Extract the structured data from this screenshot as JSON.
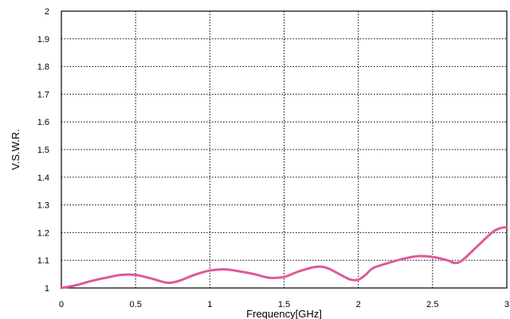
{
  "chart_data": {
    "type": "line",
    "title": "",
    "xlabel": "Frequency[GHz]",
    "ylabel": "V.S.W.R.",
    "xlim": [
      0,
      3
    ],
    "ylim": [
      1,
      2
    ],
    "x_ticks": [
      "0",
      "0.5",
      "1",
      "1.5",
      "2",
      "2.5",
      "3"
    ],
    "y_ticks": [
      "1",
      "1.1",
      "1.2",
      "1.3",
      "1.4",
      "1.5",
      "1.6",
      "1.7",
      "1.8",
      "1.9",
      "2"
    ],
    "grid": true,
    "grid_style": "dotted",
    "series": [
      {
        "color": "#e0589a",
        "x": [
          0,
          0.1,
          0.2,
          0.3,
          0.4,
          0.5,
          0.6,
          0.7,
          0.75,
          0.8,
          0.9,
          1.0,
          1.1,
          1.2,
          1.3,
          1.4,
          1.5,
          1.6,
          1.7,
          1.75,
          1.8,
          1.9,
          1.95,
          2.0,
          2.05,
          2.1,
          2.2,
          2.3,
          2.4,
          2.5,
          2.6,
          2.65,
          2.7,
          2.8,
          2.9,
          2.95,
          3.0
        ],
        "y": [
          1.0,
          1.01,
          1.025,
          1.037,
          1.047,
          1.047,
          1.035,
          1.02,
          1.02,
          1.027,
          1.048,
          1.063,
          1.067,
          1.06,
          1.05,
          1.037,
          1.04,
          1.06,
          1.075,
          1.077,
          1.07,
          1.042,
          1.03,
          1.03,
          1.048,
          1.072,
          1.09,
          1.105,
          1.115,
          1.112,
          1.1,
          1.09,
          1.1,
          1.15,
          1.2,
          1.215,
          1.22
        ]
      }
    ]
  }
}
